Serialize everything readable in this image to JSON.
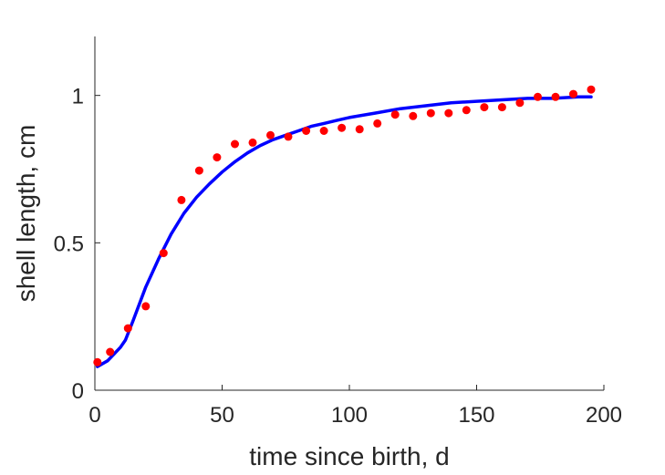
{
  "chart_data": {
    "type": "scatter",
    "title": "",
    "xlabel": "time since birth, d",
    "ylabel": "shell length, cm",
    "xlim": [
      0,
      200
    ],
    "ylim": [
      0,
      1.2
    ],
    "xticks": [
      0,
      50,
      100,
      150,
      200
    ],
    "yticks": [
      0,
      0.5,
      1
    ],
    "ytick_labels": [
      "0",
      "0.5",
      "1"
    ],
    "grid": false,
    "legend": "none",
    "series": [
      {
        "kind": "points",
        "color": "#ff0000",
        "x": [
          1,
          6,
          13,
          20,
          27,
          34,
          41,
          48,
          55,
          62,
          69,
          76,
          83,
          90,
          97,
          104,
          111,
          118,
          125,
          132,
          139,
          146,
          153,
          160,
          167,
          174,
          181,
          188,
          195
        ],
        "y": [
          0.095,
          0.13,
          0.21,
          0.285,
          0.465,
          0.645,
          0.745,
          0.79,
          0.835,
          0.84,
          0.865,
          0.86,
          0.88,
          0.88,
          0.89,
          0.885,
          0.905,
          0.935,
          0.93,
          0.94,
          0.94,
          0.95,
          0.96,
          0.96,
          0.975,
          0.995,
          0.995,
          1.005,
          1.02
        ]
      },
      {
        "kind": "line",
        "color": "#0000ff",
        "x": [
          1,
          5,
          10,
          12,
          15,
          20,
          25,
          30,
          35,
          40,
          45,
          50,
          55,
          60,
          65,
          70,
          75,
          80,
          85,
          90,
          95,
          100,
          110,
          120,
          130,
          140,
          150,
          160,
          170,
          180,
          190,
          195
        ],
        "y": [
          0.08,
          0.1,
          0.145,
          0.17,
          0.235,
          0.35,
          0.445,
          0.53,
          0.6,
          0.655,
          0.7,
          0.74,
          0.775,
          0.805,
          0.83,
          0.85,
          0.865,
          0.88,
          0.895,
          0.905,
          0.915,
          0.925,
          0.94,
          0.955,
          0.965,
          0.975,
          0.98,
          0.985,
          0.99,
          0.99,
          0.995,
          0.995
        ]
      }
    ]
  }
}
